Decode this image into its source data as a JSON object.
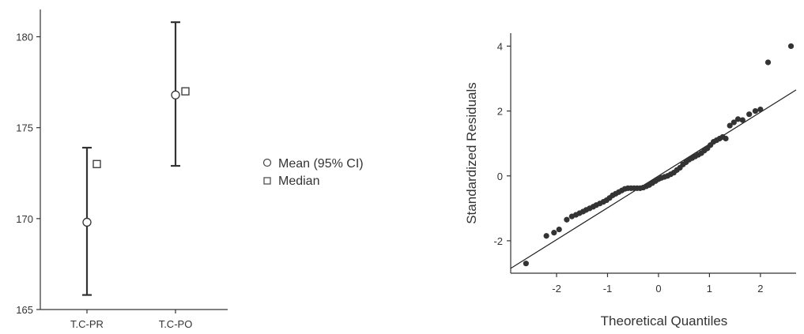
{
  "chart_data": [
    {
      "type": "scatter",
      "title": "",
      "xlabel": "",
      "ylabel": "",
      "categories": [
        "T.C-PR",
        "T.C-PO"
      ],
      "series": [
        {
          "name": "Mean (95% CI)",
          "marker": "circle",
          "values": [
            169.8,
            176.8
          ],
          "ci_low": [
            165.8,
            172.9
          ],
          "ci_high": [
            173.9,
            180.8
          ]
        },
        {
          "name": "Median",
          "marker": "square",
          "values": [
            173.0,
            177.0
          ]
        }
      ],
      "ylim": [
        165,
        181.5
      ],
      "yticks": [
        165,
        170,
        175,
        180
      ],
      "legend": {
        "position": "right",
        "items": [
          "Mean (95% CI)",
          "Median"
        ]
      },
      "grid": false
    },
    {
      "type": "scatter",
      "title": "",
      "xlabel": "Theoretical Quantiles",
      "ylabel": "Standardized Residuals",
      "xlim": [
        -2.9,
        2.7
      ],
      "ylim": [
        -3.0,
        4.4
      ],
      "xticks": [
        -2,
        -1,
        0,
        1,
        2
      ],
      "yticks": [
        -2,
        0,
        2,
        4
      ],
      "grid": false,
      "reference_line": {
        "x": [
          -2.9,
          2.7
        ],
        "y": [
          -2.85,
          2.65
        ]
      },
      "points": {
        "x": [
          -2.6,
          -2.2,
          -2.05,
          -1.95,
          -1.8,
          -1.7,
          -1.62,
          -1.55,
          -1.48,
          -1.42,
          -1.35,
          -1.28,
          -1.22,
          -1.15,
          -1.08,
          -1.02,
          -0.96,
          -0.9,
          -0.84,
          -0.78,
          -0.72,
          -0.66,
          -0.6,
          -0.54,
          -0.48,
          -0.42,
          -0.36,
          -0.3,
          -0.24,
          -0.18,
          -0.12,
          -0.06,
          0.0,
          0.06,
          0.12,
          0.18,
          0.24,
          0.3,
          0.36,
          0.42,
          0.48,
          0.54,
          0.6,
          0.66,
          0.72,
          0.78,
          0.84,
          0.9,
          0.96,
          1.02,
          1.08,
          1.14,
          1.2,
          1.26,
          1.32,
          1.4,
          1.48,
          1.56,
          1.65,
          1.78,
          1.9,
          2.0,
          2.15,
          2.6
        ],
        "y": [
          -2.7,
          -1.85,
          -1.75,
          -1.65,
          -1.35,
          -1.25,
          -1.2,
          -1.15,
          -1.1,
          -1.05,
          -1.0,
          -0.95,
          -0.9,
          -0.85,
          -0.8,
          -0.75,
          -0.68,
          -0.6,
          -0.55,
          -0.5,
          -0.45,
          -0.4,
          -0.38,
          -0.38,
          -0.38,
          -0.38,
          -0.38,
          -0.36,
          -0.32,
          -0.28,
          -0.22,
          -0.16,
          -0.1,
          -0.06,
          -0.03,
          0.0,
          0.05,
          0.1,
          0.18,
          0.25,
          0.35,
          0.42,
          0.5,
          0.55,
          0.6,
          0.65,
          0.7,
          0.78,
          0.85,
          0.95,
          1.05,
          1.1,
          1.15,
          1.2,
          1.15,
          1.55,
          1.65,
          1.75,
          1.72,
          1.9,
          2.0,
          2.05,
          3.5,
          4.0
        ]
      }
    }
  ]
}
